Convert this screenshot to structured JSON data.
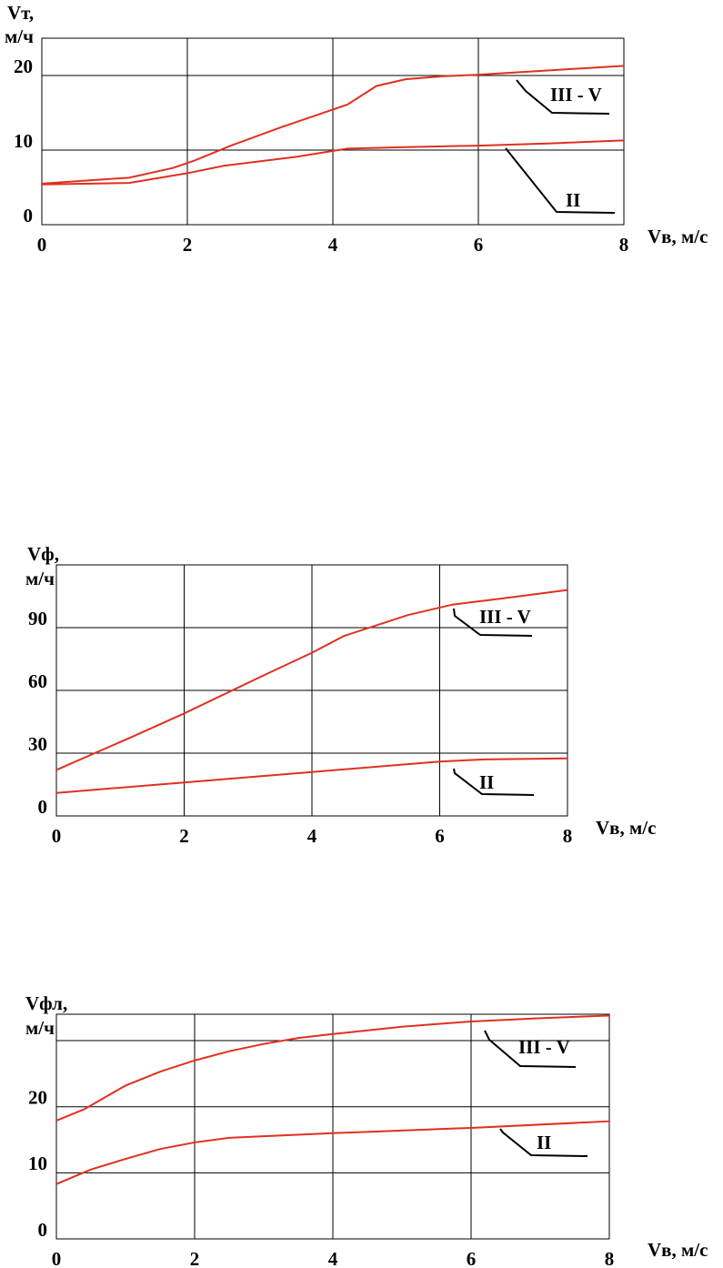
{
  "chart_data": [
    {
      "type": "line",
      "y_label": [
        "Vт,",
        "м/ч"
      ],
      "x_label": "Vв, м/с",
      "xlim": [
        0,
        8
      ],
      "xticks": [
        0,
        2,
        4,
        6,
        8
      ],
      "ylim": [
        0,
        25
      ],
      "yticks": [
        0,
        10,
        20
      ],
      "series": [
        {
          "name": "III  - V",
          "color": "#e03020",
          "x": [
            0,
            1.2,
            1.8,
            2.1,
            2.6,
            3.3,
            4.2,
            4.6,
            5,
            5.5,
            6,
            7,
            8
          ],
          "values": [
            5.5,
            6.3,
            7.6,
            8.6,
            10.6,
            13.1,
            16.1,
            18.6,
            19.5,
            19.9,
            20.1,
            20.7,
            21.3
          ]
        },
        {
          "name": "II",
          "color": "#e03020",
          "x": [
            0,
            1.2,
            2,
            2.5,
            3.5,
            4.2,
            5,
            6,
            7,
            8
          ],
          "values": [
            5.4,
            5.6,
            6.9,
            7.9,
            9.1,
            10.2,
            10.4,
            10.6,
            10.9,
            11.3
          ]
        }
      ]
    },
    {
      "type": "line",
      "y_label": [
        "Vф,",
        "м/ч"
      ],
      "x_label": "Vв, м/с",
      "xlim": [
        0,
        8
      ],
      "xticks": [
        0,
        2,
        4,
        6,
        8
      ],
      "ylim": [
        0,
        120
      ],
      "yticks": [
        0,
        30,
        60,
        90
      ],
      "series": [
        {
          "name": "III  - V",
          "color": "#e03020",
          "x": [
            0,
            1.2,
            2,
            3.3,
            4,
            4.5,
            5.5,
            6.2,
            7,
            8
          ],
          "values": [
            22,
            38,
            49,
            68,
            78,
            86,
            96,
            101,
            104,
            108
          ]
        },
        {
          "name": "II",
          "color": "#e03020",
          "x": [
            0,
            2,
            4,
            6,
            6.7,
            8
          ],
          "values": [
            11,
            16,
            21,
            26,
            27,
            27.5
          ]
        }
      ]
    },
    {
      "type": "line",
      "y_label": [
        "Vфл,",
        "м/ч"
      ],
      "x_label": "Vв, м/с",
      "xlim": [
        0,
        8
      ],
      "xticks": [
        0,
        2,
        4,
        6,
        8
      ],
      "ylim": [
        0,
        34
      ],
      "yticks": [
        0,
        10,
        20
      ],
      "ygrid": [
        10,
        20,
        30
      ],
      "series": [
        {
          "name": "III  - V",
          "color": "#e03020",
          "x": [
            0,
            0.4,
            1,
            1.5,
            2,
            2.5,
            3,
            3.5,
            4,
            5,
            6,
            7,
            8
          ],
          "values": [
            17.9,
            19.6,
            23.2,
            25.3,
            27,
            28.4,
            29.5,
            30.4,
            31,
            32.1,
            32.9,
            33.4,
            33.8
          ]
        },
        {
          "name": "II",
          "color": "#e03020",
          "x": [
            0,
            0.5,
            1,
            1.5,
            2,
            2.5,
            4,
            6,
            8
          ],
          "values": [
            8.3,
            10.5,
            12.1,
            13.6,
            14.6,
            15.3,
            16,
            16.8,
            17.8
          ]
        }
      ]
    }
  ]
}
